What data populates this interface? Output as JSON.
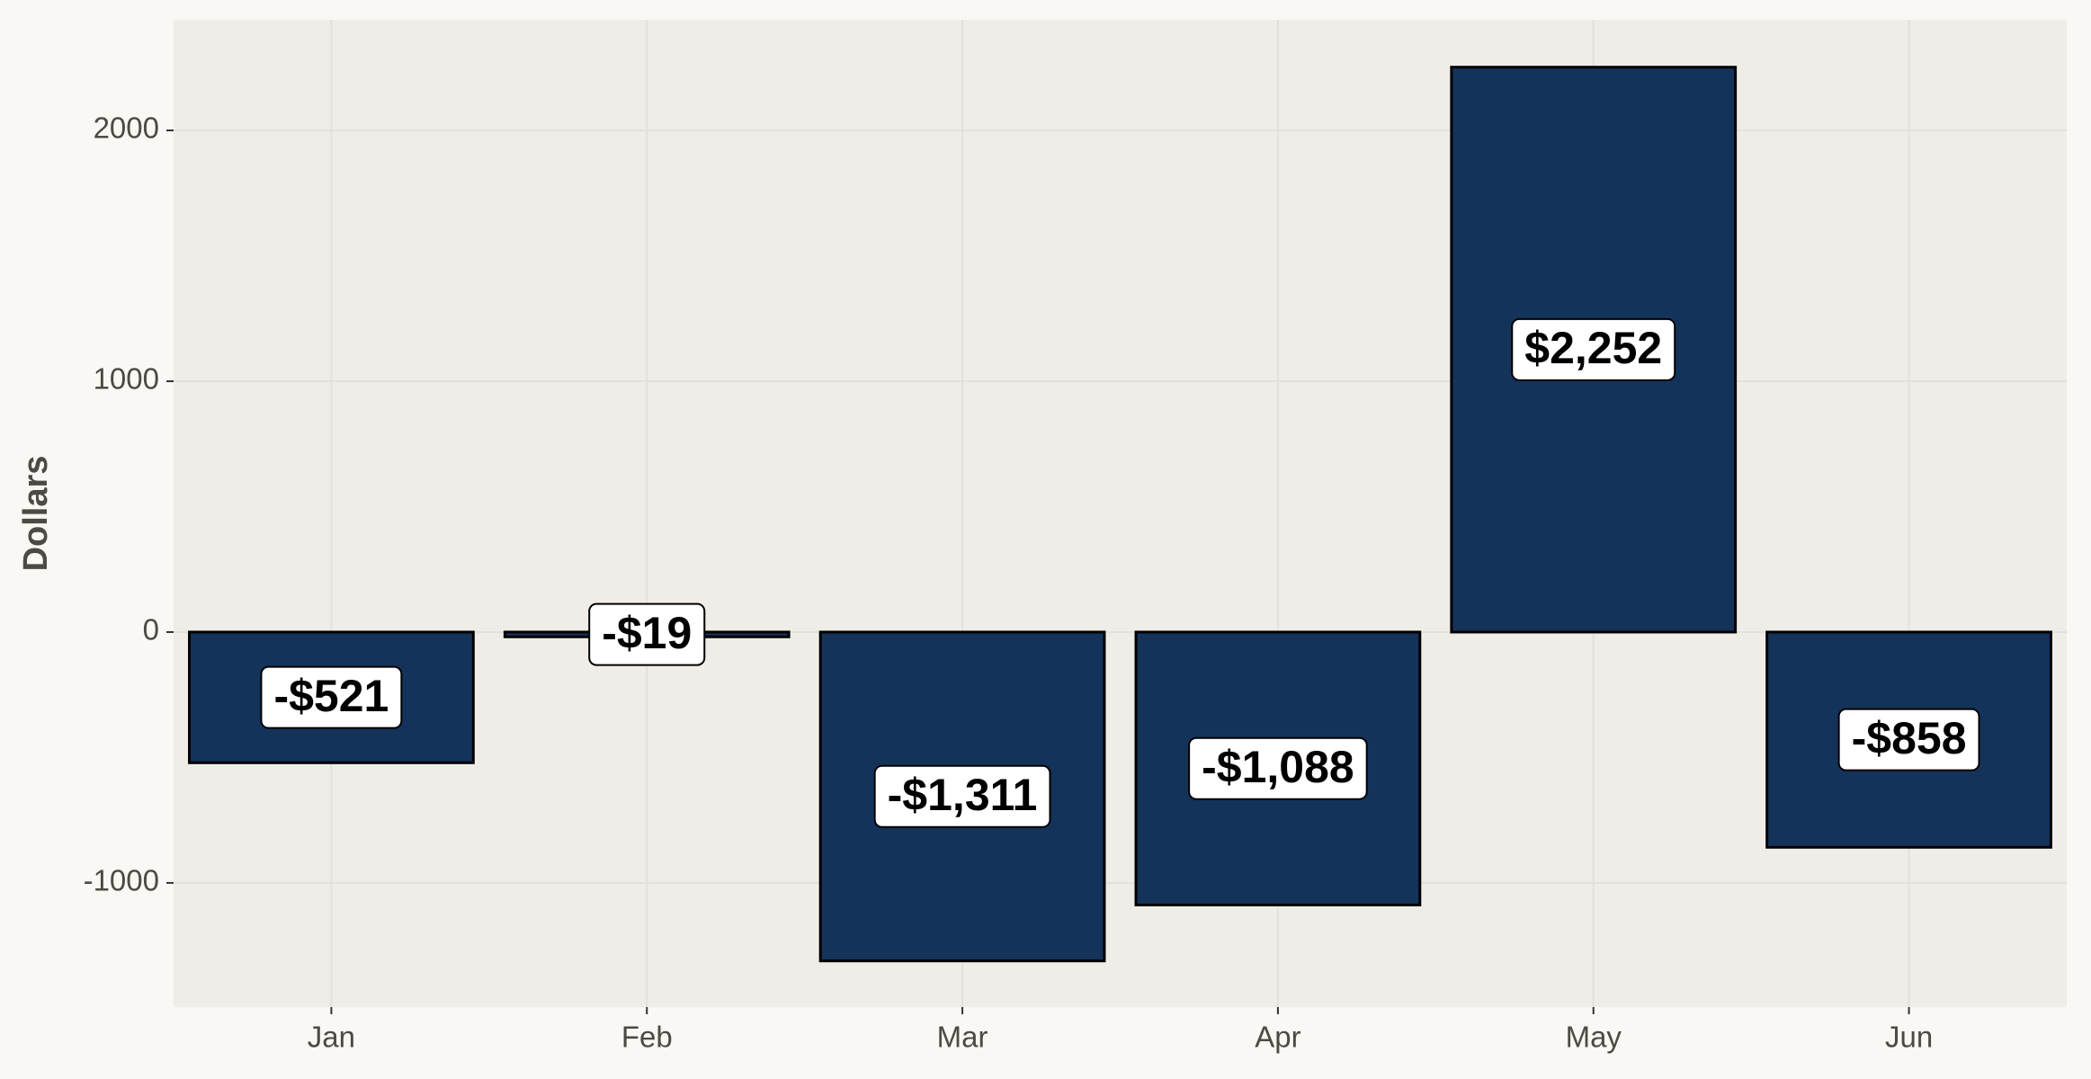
{
  "chart_data": {
    "type": "bar",
    "y_label": "Dollars",
    "categories": [
      "Jan",
      "Feb",
      "Mar",
      "Apr",
      "May",
      "Jun"
    ],
    "values": [
      -521,
      -19,
      -1311,
      -1088,
      2252,
      -858
    ],
    "value_labels": [
      "-$521",
      "-$19",
      "-$1,311",
      "-$1,088",
      "$2,252",
      "-$858"
    ],
    "color": "#14335a",
    "ylim": [
      -1495,
      2441
    ],
    "yticks": [
      -1000,
      0,
      1000,
      2000
    ],
    "grid": true
  }
}
